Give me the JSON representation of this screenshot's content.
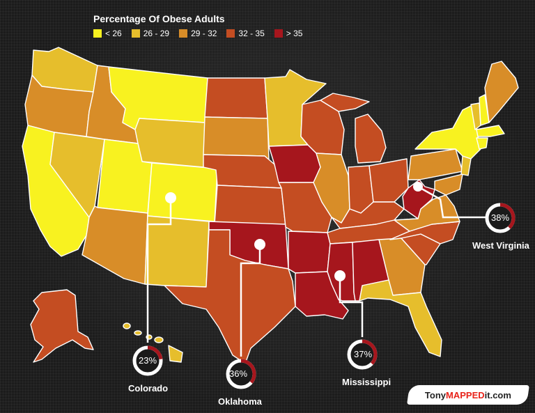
{
  "legend": {
    "title": "Percentage Of Obese Adults",
    "items": [
      {
        "label": "< 26",
        "color": "#f8f220"
      },
      {
        "label": "26 - 29",
        "color": "#e6be2c"
      },
      {
        "label": "29 - 32",
        "color": "#d88d28"
      },
      {
        "label": "32 - 35",
        "color": "#c44d22"
      },
      {
        "label": "> 35",
        "color": "#a6161d"
      }
    ]
  },
  "callouts": [
    {
      "state": "Colorado",
      "percent": "23%",
      "value": 23
    },
    {
      "state": "Oklahoma",
      "percent": "36%",
      "value": 36
    },
    {
      "state": "Mississippi",
      "percent": "37%",
      "value": 37
    },
    {
      "state": "West Virginia",
      "percent": "38%",
      "value": 38
    }
  ],
  "brand": {
    "prefix": "Tony",
    "highlight": "MAPPED",
    "suffix": "it.com"
  }
}
